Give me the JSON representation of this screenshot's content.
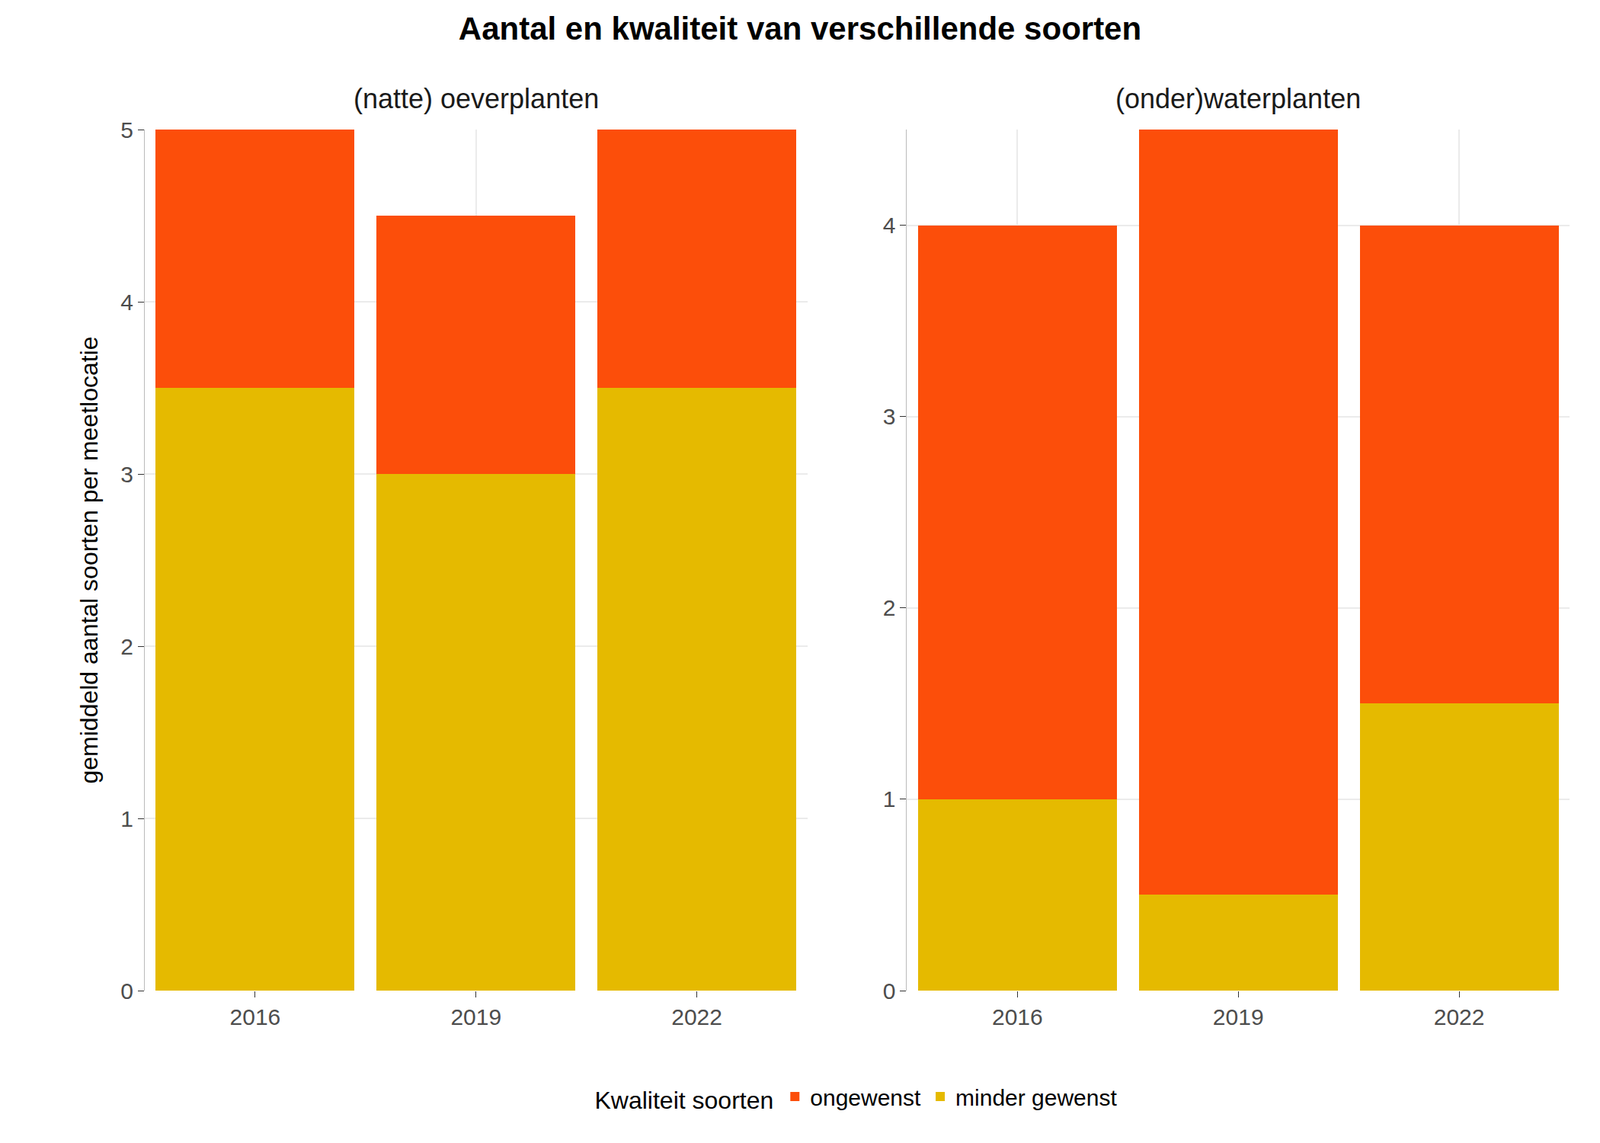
{
  "title": "Aantal en kwaliteit van verschillende soorten",
  "y_label": "gemiddeld aantal soorten per meetlocatie",
  "legend_title": "Kwaliteit soorten",
  "legend": "bottom",
  "chart_data": [
    {
      "type": "bar",
      "title": "(natte) oeverplanten",
      "categories": [
        "2016",
        "2019",
        "2022"
      ],
      "series": [
        {
          "name": "minder gewenst",
          "color": "#E5BA00",
          "values": [
            3.5,
            3,
            3.5
          ]
        },
        {
          "name": "ongewenst",
          "color": "#FC4E0A",
          "values": [
            1.5,
            1.5,
            1.5
          ]
        }
      ],
      "stacked": true,
      "grid": true,
      "ylim": [
        0,
        5
      ],
      "yticks": [
        0,
        1,
        2,
        3,
        4,
        5
      ]
    },
    {
      "type": "bar",
      "title": "(onder)waterplanten",
      "categories": [
        "2016",
        "2019",
        "2022"
      ],
      "series": [
        {
          "name": "minder gewenst",
          "color": "#E5BA00",
          "values": [
            1,
            0.5,
            1.5
          ]
        },
        {
          "name": "ongewenst",
          "color": "#FC4E0A",
          "values": [
            3,
            4,
            2.5
          ]
        }
      ],
      "stacked": true,
      "grid": true,
      "ylim": [
        0,
        4.5
      ],
      "yticks": [
        0,
        1,
        2,
        3,
        4
      ]
    }
  ]
}
